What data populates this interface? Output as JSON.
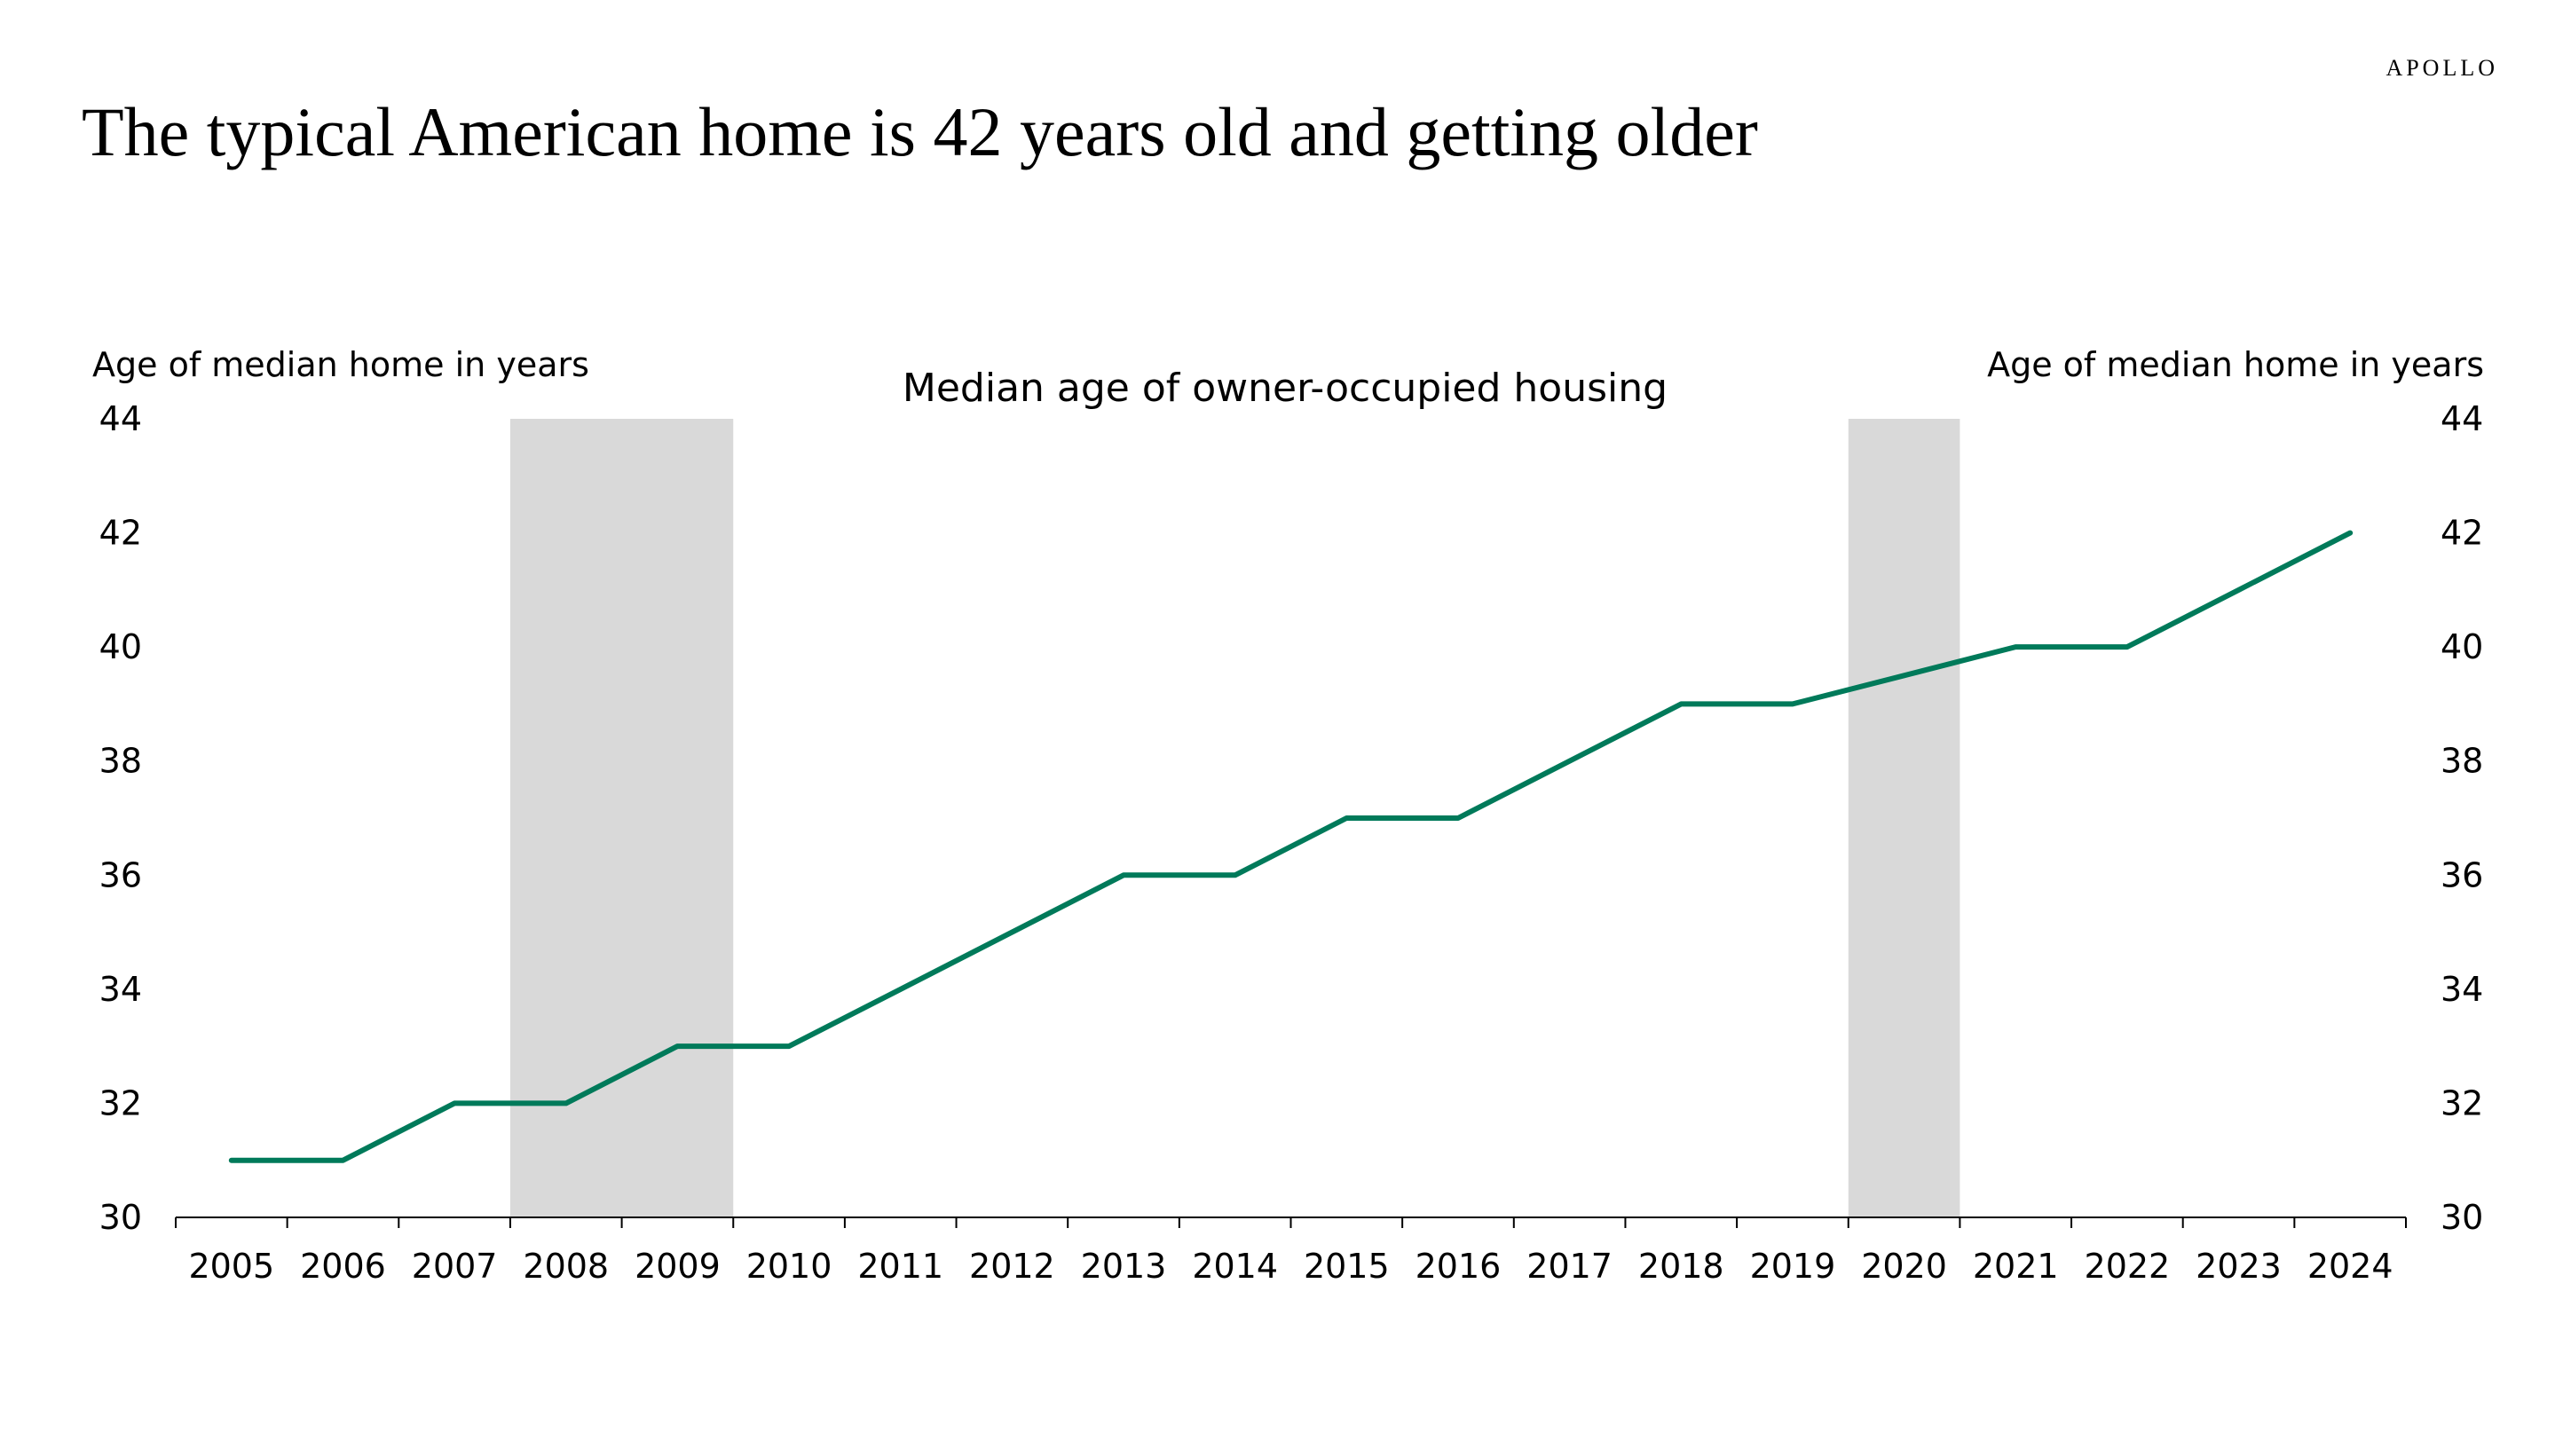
{
  "brand": "APOLLO",
  "title": "The typical American home is 42 years old and getting older",
  "colors": {
    "line": "#007a5a",
    "recession_shading": "#d9d9d9",
    "axis": "#000000"
  },
  "chart_data": {
    "type": "line",
    "title": "Median age of owner-occupied housing",
    "ylabel_left": "Age of median home in years",
    "ylabel_right": "Age of median home in years",
    "ylim": [
      30,
      44
    ],
    "yticks": [
      "30",
      "32",
      "34",
      "36",
      "38",
      "40",
      "42",
      "44"
    ],
    "categories": [
      "2005",
      "2006",
      "2007",
      "2008",
      "2009",
      "2010",
      "2011",
      "2012",
      "2013",
      "2014",
      "2015",
      "2016",
      "2017",
      "2018",
      "2019",
      "2020",
      "2021",
      "2022",
      "2023",
      "2024"
    ],
    "series": [
      {
        "values": [
          31,
          31,
          32,
          32,
          33,
          33,
          34,
          35,
          36,
          36,
          37,
          37,
          38,
          39,
          39,
          39.5,
          40,
          40,
          41,
          42
        ]
      }
    ],
    "shaded_periods": [
      {
        "from": "2008",
        "to": "2009"
      },
      {
        "from": "2020",
        "to": "2020"
      }
    ],
    "grid": false,
    "legend": "none"
  }
}
